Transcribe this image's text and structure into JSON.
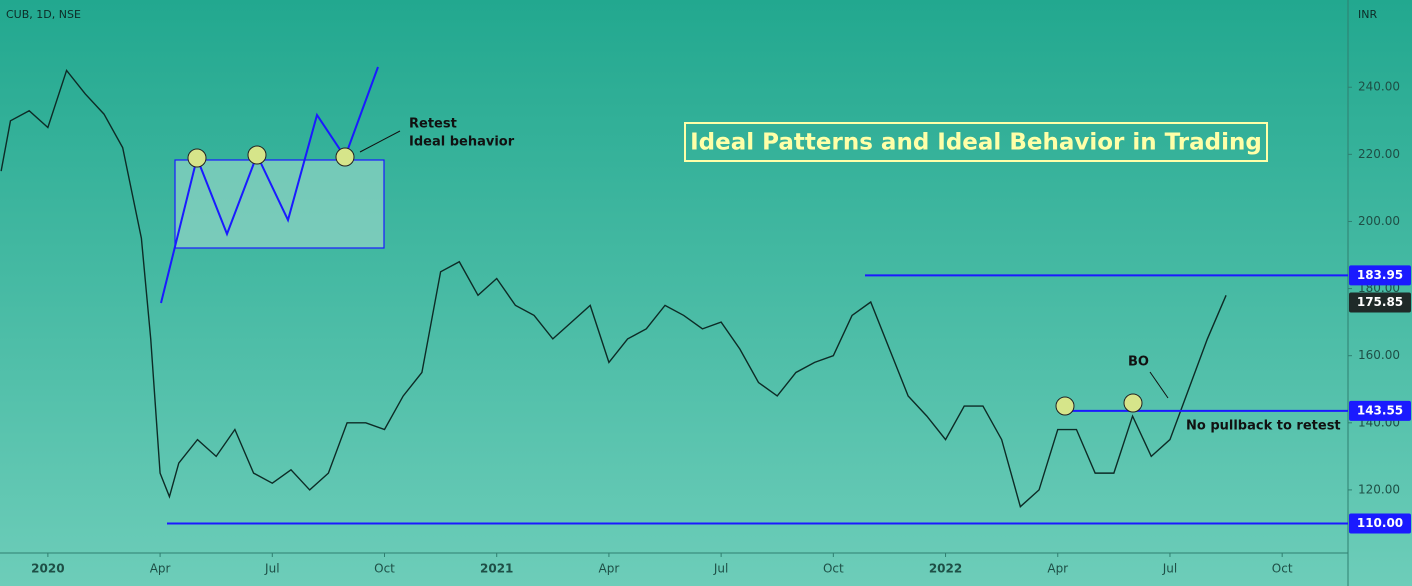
{
  "chart_data": {
    "type": "line",
    "header": "CUB, 1D, NSE",
    "currency": "INR",
    "title": "Ideal Patterns and Ideal Behavior in Trading",
    "annotations": [
      "Retest",
      "Ideal behavior",
      "BO",
      "No pullback to retest"
    ],
    "xlim": [
      -1.28,
      34.76
    ],
    "ylim": [
      101.2,
      266
    ],
    "xticks": [
      {
        "value": 0,
        "label": "2020"
      },
      {
        "value": 3,
        "label": "Apr"
      },
      {
        "value": 6,
        "label": "Jul"
      },
      {
        "value": 9,
        "label": "Oct"
      },
      {
        "value": 12,
        "label": "2021"
      },
      {
        "value": 15,
        "label": "Apr"
      },
      {
        "value": 18,
        "label": "Jul"
      },
      {
        "value": 21,
        "label": "Oct"
      },
      {
        "value": 24,
        "label": "2022"
      },
      {
        "value": 27,
        "label": "Apr"
      },
      {
        "value": 30,
        "label": "Jul"
      },
      {
        "value": 33,
        "label": "Oct"
      }
    ],
    "yticks": [
      {
        "value": 120,
        "label": "120.00"
      },
      {
        "value": 140,
        "label": "140.00"
      },
      {
        "value": 160,
        "label": "160.00"
      },
      {
        "value": 180,
        "label": "180.00"
      },
      {
        "value": 200,
        "label": "200.00"
      },
      {
        "value": 220,
        "label": "220.00"
      },
      {
        "value": 240,
        "label": "240.00"
      }
    ],
    "series": [
      {
        "name": "CUB",
        "color": "#0d2b26",
        "x": [
          -1.25,
          -1,
          -0.5,
          0,
          0.5,
          1,
          1.5,
          2,
          2.5,
          2.75,
          3,
          3.25,
          3.5,
          4,
          4.5,
          5,
          5.5,
          6,
          6.5,
          7,
          7.5,
          8,
          8.5,
          9,
          9.5,
          10,
          10.5,
          11,
          11.5,
          12,
          12.5,
          13,
          13.5,
          14,
          14.5,
          15,
          15.5,
          16,
          16.5,
          17,
          17.5,
          18,
          18.5,
          19,
          19.5,
          20,
          20.5,
          21,
          21.5,
          22,
          22.5,
          23,
          23.5,
          24,
          24.5,
          25,
          25.5,
          26,
          26.5,
          27,
          27.5,
          28,
          28.5,
          29,
          29.5,
          30,
          30.5,
          31,
          31.5
        ],
        "values": [
          215,
          230,
          233,
          228,
          245,
          238,
          232,
          222,
          195,
          165,
          125,
          118,
          128,
          135,
          130,
          138,
          125,
          122,
          126,
          120,
          125,
          140,
          140,
          138,
          148,
          155,
          185,
          188,
          178,
          183,
          175,
          172,
          165,
          170,
          175,
          158,
          165,
          168,
          175,
          172,
          168,
          170,
          162,
          152,
          148,
          155,
          158,
          160,
          172,
          176,
          162,
          148,
          142,
          135,
          145,
          145,
          135,
          115,
          120,
          138,
          138,
          125,
          125,
          142,
          130,
          135,
          150,
          165,
          178
        ]
      }
    ],
    "levels": {
      "color": "#1a1aff",
      "values": [
        183.95,
        143.55,
        110
      ],
      "value_labels": [
        "183.95",
        "143.55",
        "110.00"
      ]
    },
    "last_price": 175.85
  }
}
